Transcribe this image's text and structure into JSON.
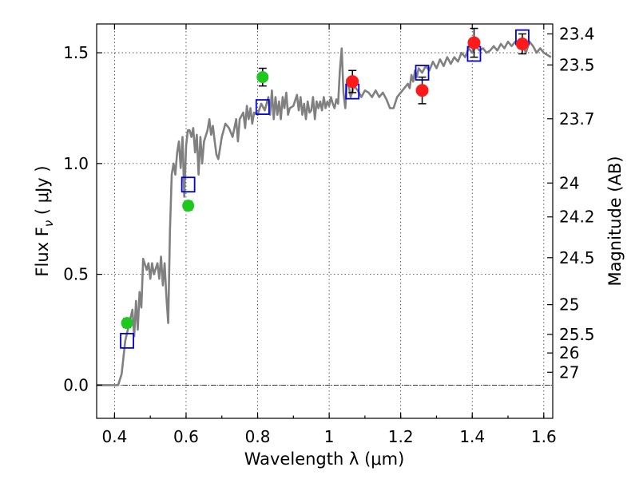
{
  "chart_data": {
    "type": "scatter",
    "title": "",
    "xlabel": "Wavelength  λ (μm)",
    "ylabel": "Flux  F",
    "ylabel_sub": "ν",
    "ylabel_unit": " ( μJy )",
    "y2label": "Magnitude (AB)",
    "xlim": [
      0.35,
      1.625
    ],
    "ylim": [
      -0.15,
      1.63
    ],
    "grid": true,
    "xticks": [
      0.4,
      0.6,
      0.8,
      1.0,
      1.2,
      1.4,
      1.6
    ],
    "xtick_labels": [
      "0.4",
      "0.6",
      "0.8",
      "1",
      "1.2",
      "1.4",
      "1.6"
    ],
    "yticks": [
      0.0,
      0.5,
      1.0,
      1.5
    ],
    "ytick_labels": [
      "0.0",
      "0.5",
      "1.0",
      "1.5"
    ],
    "y2ticks": [
      {
        "label": "23.4",
        "flux": 1.585
      },
      {
        "label": "23.5",
        "flux": 1.445
      },
      {
        "label": "23.7",
        "flux": 1.202
      },
      {
        "label": "24",
        "flux": 0.912
      },
      {
        "label": "24.2",
        "flux": 0.759
      },
      {
        "label": "24.5",
        "flux": 0.575
      },
      {
        "label": "25",
        "flux": 0.363
      },
      {
        "label": "25.5",
        "flux": 0.229
      },
      {
        "label": "26",
        "flux": 0.145
      },
      {
        "label": "27",
        "flux": 0.058
      }
    ],
    "colors": {
      "model": "#808080",
      "green": "#1ec81e",
      "red": "#ff1a1a",
      "box": "#0000dd"
    },
    "series": [
      {
        "type": "line",
        "points": [
          [
            0.35,
            0.0
          ],
          [
            0.41,
            0.0
          ],
          [
            0.42,
            0.05
          ],
          [
            0.43,
            0.2
          ],
          [
            0.44,
            0.27
          ],
          [
            0.45,
            0.34
          ],
          [
            0.455,
            0.22
          ],
          [
            0.46,
            0.38
          ],
          [
            0.465,
            0.25
          ],
          [
            0.47,
            0.42
          ],
          [
            0.475,
            0.35
          ],
          [
            0.48,
            0.57
          ],
          [
            0.49,
            0.52
          ],
          [
            0.495,
            0.55
          ],
          [
            0.5,
            0.48
          ],
          [
            0.505,
            0.55
          ],
          [
            0.51,
            0.5
          ],
          [
            0.52,
            0.55
          ],
          [
            0.525,
            0.48
          ],
          [
            0.53,
            0.58
          ],
          [
            0.535,
            0.45
          ],
          [
            0.54,
            0.55
          ],
          [
            0.545,
            0.4
          ],
          [
            0.55,
            0.28
          ],
          [
            0.555,
            0.7
          ],
          [
            0.56,
            0.95
          ],
          [
            0.565,
            1.0
          ],
          [
            0.57,
            0.95
          ],
          [
            0.575,
            1.05
          ],
          [
            0.58,
            1.1
          ],
          [
            0.585,
            0.98
          ],
          [
            0.59,
            1.12
          ],
          [
            0.595,
            0.85
          ],
          [
            0.6,
            1.08
          ],
          [
            0.605,
            1.15
          ],
          [
            0.61,
            1.15
          ],
          [
            0.615,
            1.12
          ],
          [
            0.62,
            1.16
          ],
          [
            0.625,
            1.05
          ],
          [
            0.63,
            1.13
          ],
          [
            0.635,
            0.95
          ],
          [
            0.64,
            1.12
          ],
          [
            0.645,
            1.0
          ],
          [
            0.65,
            1.1
          ],
          [
            0.66,
            1.15
          ],
          [
            0.665,
            1.2
          ],
          [
            0.67,
            1.13
          ],
          [
            0.675,
            1.17
          ],
          [
            0.68,
            1.1
          ],
          [
            0.685,
            1.04
          ],
          [
            0.69,
            1.02
          ],
          [
            0.7,
            1.12
          ],
          [
            0.71,
            1.18
          ],
          [
            0.72,
            1.16
          ],
          [
            0.73,
            1.12
          ],
          [
            0.74,
            1.2
          ],
          [
            0.745,
            1.1
          ],
          [
            0.75,
            1.2
          ],
          [
            0.76,
            1.23
          ],
          [
            0.765,
            1.16
          ],
          [
            0.77,
            1.26
          ],
          [
            0.775,
            1.2
          ],
          [
            0.78,
            1.25
          ],
          [
            0.785,
            1.18
          ],
          [
            0.79,
            1.23
          ],
          [
            0.8,
            1.22
          ],
          [
            0.81,
            1.27
          ],
          [
            0.82,
            1.24
          ],
          [
            0.83,
            1.3
          ],
          [
            0.835,
            1.22
          ],
          [
            0.84,
            1.33
          ],
          [
            0.845,
            1.2
          ],
          [
            0.85,
            1.3
          ],
          [
            0.855,
            1.22
          ],
          [
            0.86,
            1.28
          ],
          [
            0.865,
            1.2
          ],
          [
            0.87,
            1.3
          ],
          [
            0.875,
            1.25
          ],
          [
            0.88,
            1.32
          ],
          [
            0.885,
            1.22
          ],
          [
            0.89,
            1.25
          ],
          [
            0.9,
            1.26
          ],
          [
            0.91,
            1.31
          ],
          [
            0.915,
            1.24
          ],
          [
            0.92,
            1.3
          ],
          [
            0.925,
            1.22
          ],
          [
            0.93,
            1.27
          ],
          [
            0.935,
            1.2
          ],
          [
            0.94,
            1.28
          ],
          [
            0.945,
            1.23
          ],
          [
            0.95,
            1.24
          ],
          [
            0.955,
            1.3
          ],
          [
            0.96,
            1.2
          ],
          [
            0.965,
            1.28
          ],
          [
            0.97,
            1.25
          ],
          [
            0.975,
            1.28
          ],
          [
            0.98,
            1.24
          ],
          [
            0.985,
            1.3
          ],
          [
            0.99,
            1.25
          ],
          [
            0.995,
            1.28
          ],
          [
            1.0,
            1.26
          ],
          [
            1.005,
            1.3
          ],
          [
            1.01,
            1.27
          ],
          [
            1.015,
            1.25
          ],
          [
            1.02,
            1.29
          ],
          [
            1.025,
            1.27
          ],
          [
            1.03,
            1.42
          ],
          [
            1.035,
            1.52
          ],
          [
            1.04,
            1.32
          ],
          [
            1.045,
            1.25
          ],
          [
            1.05,
            1.38
          ],
          [
            1.055,
            1.35
          ],
          [
            1.06,
            1.3
          ],
          [
            1.07,
            1.35
          ],
          [
            1.08,
            1.33
          ],
          [
            1.09,
            1.3
          ],
          [
            1.1,
            1.33
          ],
          [
            1.11,
            1.32
          ],
          [
            1.12,
            1.3
          ],
          [
            1.13,
            1.33
          ],
          [
            1.14,
            1.3
          ],
          [
            1.15,
            1.32
          ],
          [
            1.16,
            1.29
          ],
          [
            1.17,
            1.25
          ],
          [
            1.18,
            1.25
          ],
          [
            1.19,
            1.3
          ],
          [
            1.2,
            1.32
          ],
          [
            1.21,
            1.34
          ],
          [
            1.22,
            1.36
          ],
          [
            1.225,
            1.34
          ],
          [
            1.23,
            1.4
          ],
          [
            1.235,
            1.37
          ],
          [
            1.24,
            1.42
          ],
          [
            1.245,
            1.39
          ],
          [
            1.25,
            1.43
          ],
          [
            1.26,
            1.41
          ],
          [
            1.27,
            1.44
          ],
          [
            1.28,
            1.42
          ],
          [
            1.29,
            1.46
          ],
          [
            1.3,
            1.43
          ],
          [
            1.31,
            1.47
          ],
          [
            1.32,
            1.44
          ],
          [
            1.33,
            1.48
          ],
          [
            1.34,
            1.45
          ],
          [
            1.35,
            1.48
          ],
          [
            1.36,
            1.46
          ],
          [
            1.37,
            1.5
          ],
          [
            1.38,
            1.48
          ],
          [
            1.39,
            1.52
          ],
          [
            1.4,
            1.5
          ],
          [
            1.41,
            1.53
          ],
          [
            1.42,
            1.51
          ],
          [
            1.43,
            1.52
          ],
          [
            1.44,
            1.5
          ],
          [
            1.45,
            1.51
          ],
          [
            1.46,
            1.53
          ],
          [
            1.47,
            1.51
          ],
          [
            1.48,
            1.54
          ],
          [
            1.49,
            1.52
          ],
          [
            1.5,
            1.55
          ],
          [
            1.51,
            1.53
          ],
          [
            1.52,
            1.55
          ],
          [
            1.53,
            1.52
          ],
          [
            1.54,
            1.54
          ],
          [
            1.55,
            1.5
          ],
          [
            1.56,
            1.55
          ],
          [
            1.57,
            1.53
          ],
          [
            1.58,
            1.5
          ],
          [
            1.59,
            1.52
          ],
          [
            1.6,
            1.5
          ],
          [
            1.61,
            1.49
          ],
          [
            1.62,
            1.48
          ]
        ]
      },
      {
        "type": "scatter",
        "points": [
          {
            "x": 0.435,
            "y": 0.28,
            "err": 0.02
          },
          {
            "x": 0.606,
            "y": 0.81,
            "err": 0.02
          },
          {
            "x": 0.814,
            "y": 1.39,
            "err": 0.04
          }
        ]
      },
      {
        "type": "scatter",
        "points": [
          {
            "x": 1.065,
            "y": 1.37,
            "err": 0.05
          },
          {
            "x": 1.26,
            "y": 1.33,
            "err": 0.06
          },
          {
            "x": 1.405,
            "y": 1.545,
            "err": 0.065
          },
          {
            "x": 1.54,
            "y": 1.54,
            "err": 0.045
          }
        ]
      },
      {
        "type": "scatter",
        "points": [
          {
            "x": 0.435,
            "y": 0.2
          },
          {
            "x": 0.606,
            "y": 0.905
          },
          {
            "x": 0.814,
            "y": 1.255
          },
          {
            "x": 1.065,
            "y": 1.325
          },
          {
            "x": 1.26,
            "y": 1.41
          },
          {
            "x": 1.405,
            "y": 1.495
          },
          {
            "x": 1.54,
            "y": 1.57
          }
        ]
      }
    ]
  }
}
